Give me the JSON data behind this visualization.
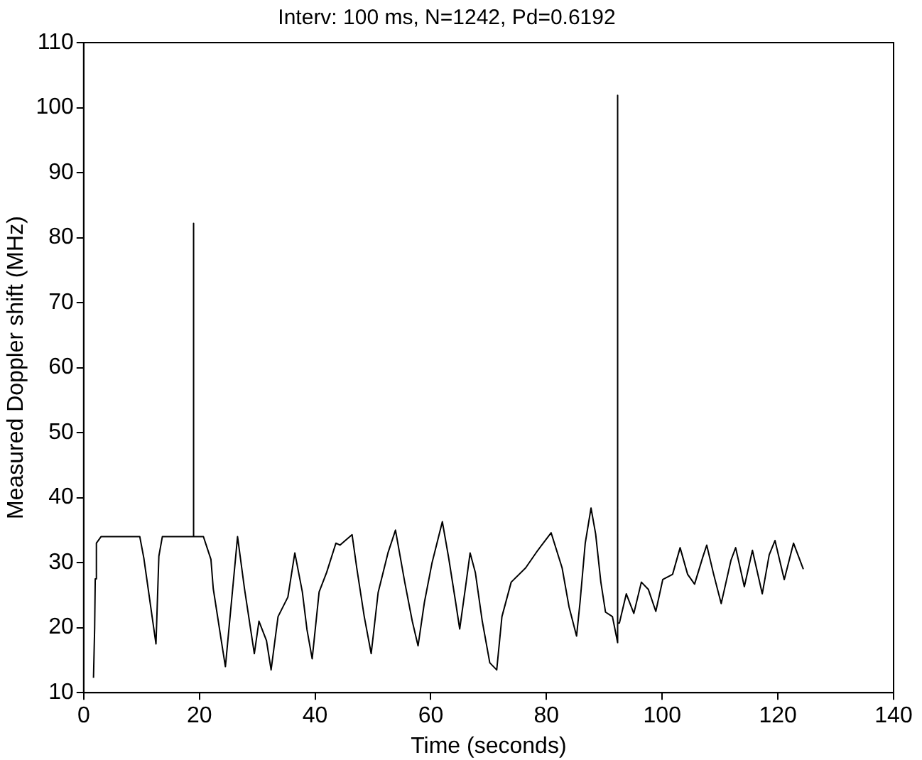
{
  "chart_data": {
    "type": "line",
    "title": "Interv: 100 ms, N=1242, Pd=0.6192",
    "xlabel": "Time (seconds)",
    "ylabel": "Measured Doppler shift (MHz)",
    "x": [
      1.7,
      1.9,
      2.0,
      2.2,
      3,
      9.7,
      10.4,
      12.5,
      13,
      13.6,
      19,
      19,
      19,
      20.7,
      22,
      22.4,
      24,
      24.5,
      26.6,
      27.8,
      29.5,
      30.3,
      31.6,
      32.4,
      33.6,
      35.3,
      36.5,
      37.8,
      38.6,
      39.5,
      40.7,
      42,
      43.6,
      44.3,
      46.4,
      47.2,
      48.5,
      49.7,
      50.9,
      52.6,
      53.9,
      55.5,
      56.8,
      57.8,
      58.9,
      60.2,
      62,
      63.1,
      64.3,
      65,
      66,
      66.8,
      67.7,
      68.9,
      70.2,
      71.4,
      72.3,
      73.9,
      76.4,
      78.5,
      80.8,
      82.7,
      83.9,
      85.2,
      85.8,
      86.7,
      87.7,
      88.5,
      89.4,
      90.2,
      91.4,
      92.3,
      92.3,
      92.3,
      92.6,
      93.8,
      95.1,
      96.4,
      97.6,
      98.9,
      100.1,
      101.8,
      103.1,
      104.4,
      105.6,
      107,
      107.7,
      108.9,
      110.2,
      111.9,
      112.7,
      114.2,
      115.6,
      117.3,
      118.5,
      119.5,
      121.1,
      122.7,
      124.4
    ],
    "series": [
      {
        "color": "#000000",
        "values": [
          12.3,
          20,
          27.5,
          33,
          34,
          34,
          30.7,
          17.5,
          31,
          34,
          34,
          82.2,
          34,
          34,
          30.5,
          26,
          16.8,
          14,
          34,
          26,
          16,
          21,
          18,
          13.5,
          21.7,
          24.7,
          31.5,
          25.5,
          19.7,
          15.2,
          25.5,
          28.5,
          33,
          32.7,
          34.3,
          29.2,
          21.7,
          16,
          25.4,
          31.5,
          35,
          27,
          21,
          17.2,
          23.9,
          29.9,
          36.3,
          30.7,
          23.9,
          19.8,
          26.2,
          31.5,
          28.5,
          21,
          14.6,
          13.5,
          21.7,
          27,
          29.2,
          31.9,
          34.6,
          29.2,
          23.2,
          18.7,
          23.9,
          33,
          38.4,
          34.4,
          27,
          22.4,
          21.7,
          17.7,
          101.9,
          20.7,
          20.7,
          25.2,
          22.2,
          27,
          25.9,
          22.5,
          27.4,
          28.2,
          32.3,
          28.2,
          26.7,
          30.8,
          32.7,
          28.2,
          23.7,
          30.4,
          32.3,
          26.3,
          31.9,
          25.2,
          31.2,
          33.4,
          27.4,
          33,
          29
        ]
      }
    ],
    "xlim": [
      0,
      140
    ],
    "xticks": [
      0,
      20,
      40,
      60,
      80,
      100,
      120,
      140
    ],
    "ylim": [
      10,
      110
    ],
    "yticks": [
      10,
      20,
      30,
      40,
      50,
      60,
      70,
      80,
      90,
      100,
      110
    ],
    "grid": false,
    "legend": false,
    "marker": "none",
    "line_style": "solid"
  }
}
